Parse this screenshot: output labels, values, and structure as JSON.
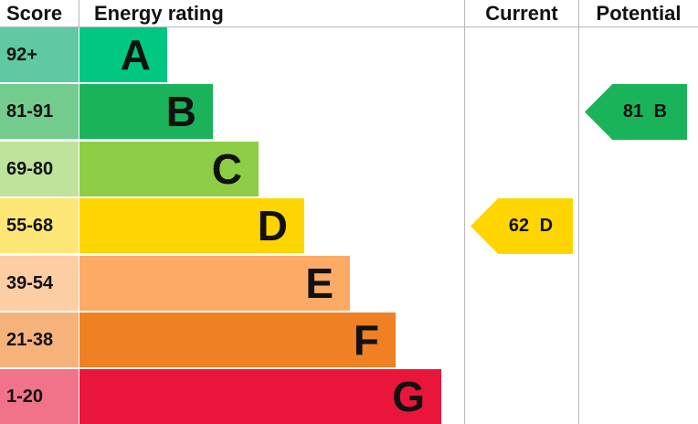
{
  "chart_data": {
    "type": "bar",
    "headers": {
      "score": "Score",
      "rating": "Energy rating",
      "current": "Current",
      "potential": "Potential"
    },
    "bands": [
      {
        "band": "A",
        "score": "92+",
        "color": "#00c781",
        "score_color": "#5fc9a1"
      },
      {
        "band": "B",
        "score": "81-91",
        "color": "#1bb35a",
        "score_color": "#73cc8e"
      },
      {
        "band": "C",
        "score": "69-80",
        "color": "#8dce46",
        "score_color": "#bfe39b"
      },
      {
        "band": "D",
        "score": "55-68",
        "color": "#ffd500",
        "score_color": "#ffe777"
      },
      {
        "band": "E",
        "score": "39-54",
        "color": "#fcaa65",
        "score_color": "#fdcda4"
      },
      {
        "band": "F",
        "score": "21-38",
        "color": "#ef8023",
        "score_color": "#f5b27b"
      },
      {
        "band": "G",
        "score": "1-20",
        "color": "#e9153b",
        "score_color": "#f0738a"
      }
    ],
    "current": {
      "value": 62,
      "band": "D",
      "label": "62 D",
      "color": "#ffd500"
    },
    "potential": {
      "value": 81,
      "band": "B",
      "label": "81 B",
      "color": "#1bb35a"
    }
  }
}
